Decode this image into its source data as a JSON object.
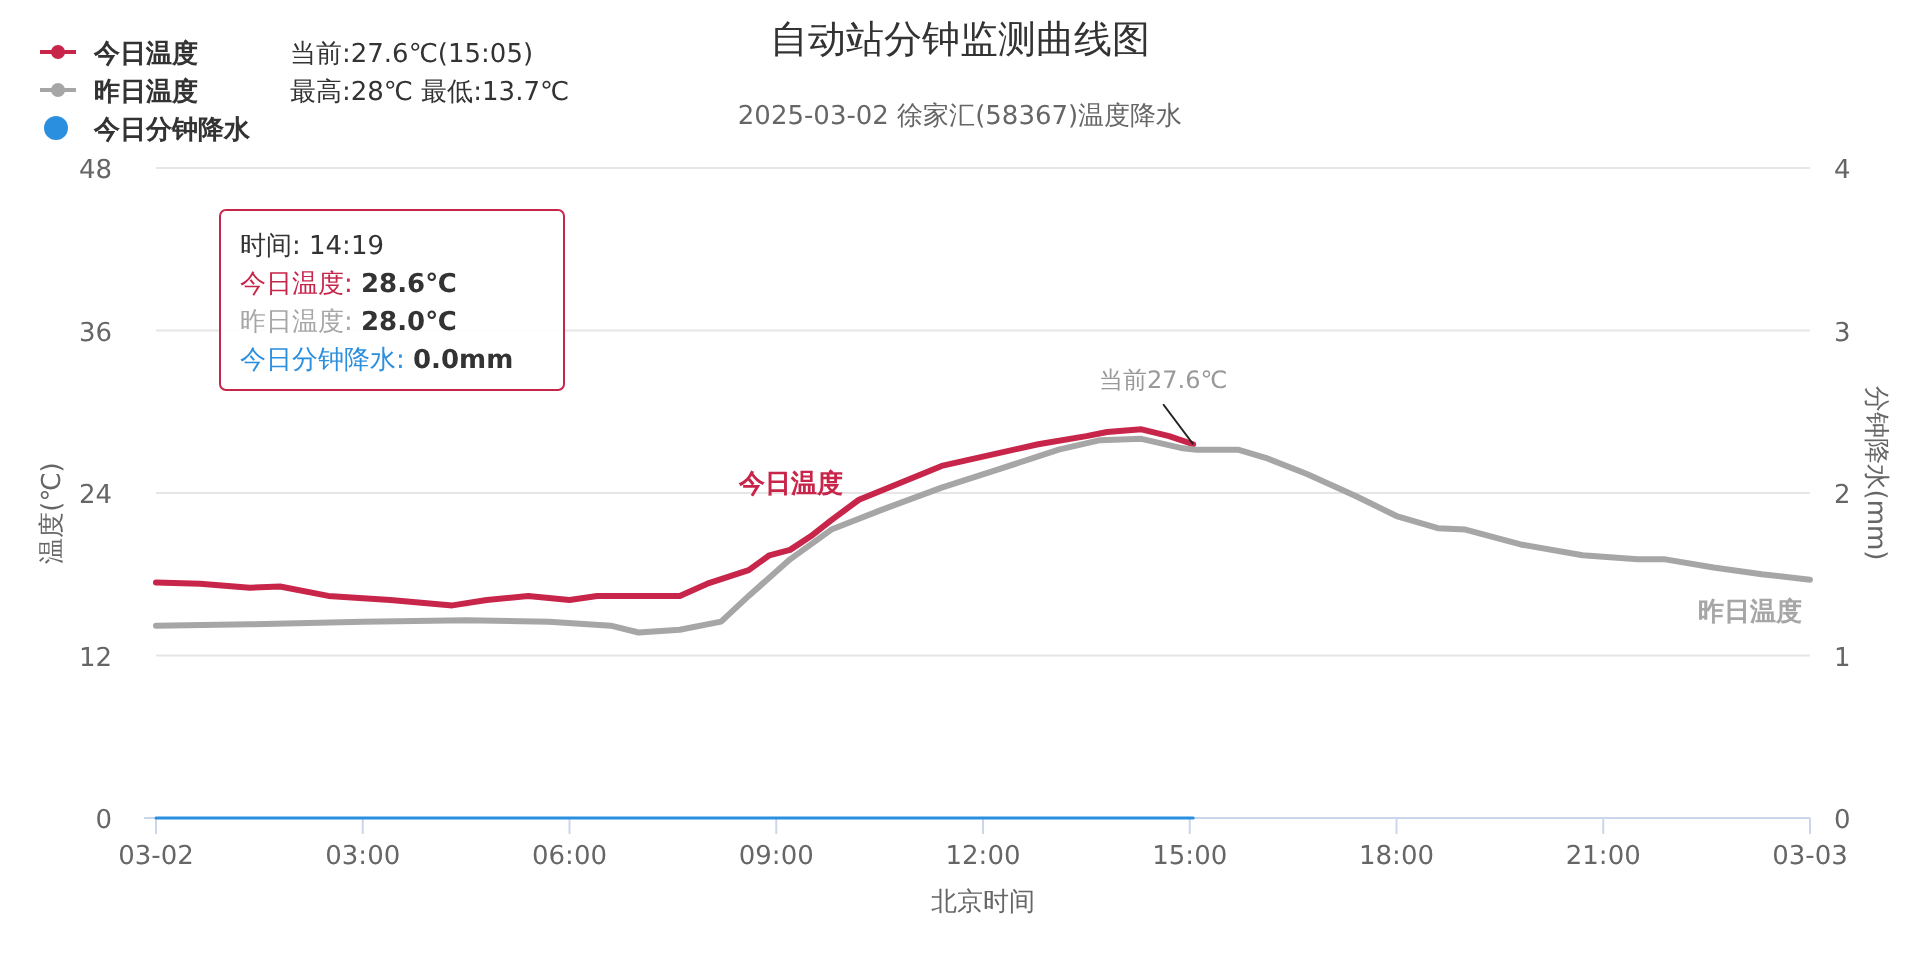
{
  "chart_data": {
    "type": "line",
    "title": "自动站分钟监测曲线图",
    "subtitle": "2025-03-02 徐家汇(58367)温度降水",
    "xlabel": "北京时间",
    "ylabel": "温度(℃)",
    "y2label": "分钟降水(mm)",
    "xlim": [
      0,
      24
    ],
    "xticks": [
      {
        "value": 0,
        "label": "03-02"
      },
      {
        "value": 3,
        "label": "03:00"
      },
      {
        "value": 6,
        "label": "06:00"
      },
      {
        "value": 9,
        "label": "09:00"
      },
      {
        "value": 12,
        "label": "12:00"
      },
      {
        "value": 15,
        "label": "15:00"
      },
      {
        "value": 18,
        "label": "18:00"
      },
      {
        "value": 21,
        "label": "21:00"
      },
      {
        "value": 24,
        "label": "03-03"
      }
    ],
    "ylim": [
      0,
      48
    ],
    "yticks": [
      0,
      12,
      24,
      36,
      48
    ],
    "y2lim": [
      0,
      4
    ],
    "y2ticks": [
      0,
      1,
      2,
      3,
      4
    ],
    "grid": "y",
    "legend": "top left",
    "marker": "none",
    "line_style": "solid",
    "series": [
      {
        "name": "今日温度",
        "color": "#c8254a",
        "x": [
          0,
          0.64,
          1.36,
          1.8,
          2.5,
          3.4,
          4.3,
          4.8,
          5.4,
          6.0,
          6.4,
          7.0,
          7.6,
          8.0,
          8.6,
          8.9,
          9.2,
          9.5,
          9.8,
          10.2,
          11.4,
          12.8,
          13.5,
          13.8,
          14.3,
          14.7,
          15.05
        ],
        "values": [
          17.4,
          17.3,
          17.0,
          17.1,
          16.4,
          16.1,
          15.7,
          16.1,
          16.4,
          16.1,
          16.4,
          16.4,
          16.4,
          17.3,
          18.3,
          19.4,
          19.8,
          20.8,
          22.0,
          23.5,
          26.0,
          27.6,
          28.2,
          28.5,
          28.7,
          28.2,
          27.6
        ]
      },
      {
        "name": "昨日温度",
        "color": "#a6a6a6",
        "x": [
          0,
          1.36,
          3.0,
          4.5,
          5.7,
          6.6,
          7.0,
          7.6,
          8.2,
          8.6,
          9.2,
          9.8,
          10.5,
          11.4,
          12.2,
          13.1,
          13.7,
          14.3,
          14.9,
          15.1,
          15.7,
          16.1,
          16.7,
          17.4,
          18.0,
          18.6,
          19.0,
          19.8,
          20.7,
          21.5,
          21.9,
          22.6,
          23.3,
          24.0
        ],
        "values": [
          14.2,
          14.3,
          14.5,
          14.6,
          14.5,
          14.2,
          13.7,
          13.9,
          14.5,
          16.4,
          19.1,
          21.3,
          22.7,
          24.4,
          25.7,
          27.2,
          27.9,
          28.0,
          27.3,
          27.2,
          27.2,
          26.6,
          25.4,
          23.8,
          22.3,
          21.4,
          21.3,
          20.2,
          19.4,
          19.1,
          19.1,
          18.5,
          18.0,
          17.6
        ]
      },
      {
        "name": "今日分钟降水",
        "color": "#2b8fe0",
        "axis": "y2",
        "x": [
          0,
          15.05
        ],
        "values": [
          0,
          0
        ]
      }
    ],
    "annotations": [
      "当前:27.6℃(15:05)",
      "最高:28℃ 最低:13.7℃",
      "时间: 14:19",
      "今日温度: 28.6℃",
      "昨日温度: 28.0℃",
      "今日分钟降水: 0.0mm",
      {
        "text": "当前27.6℃",
        "x": 15.05,
        "y": 27.6
      }
    ]
  }
}
